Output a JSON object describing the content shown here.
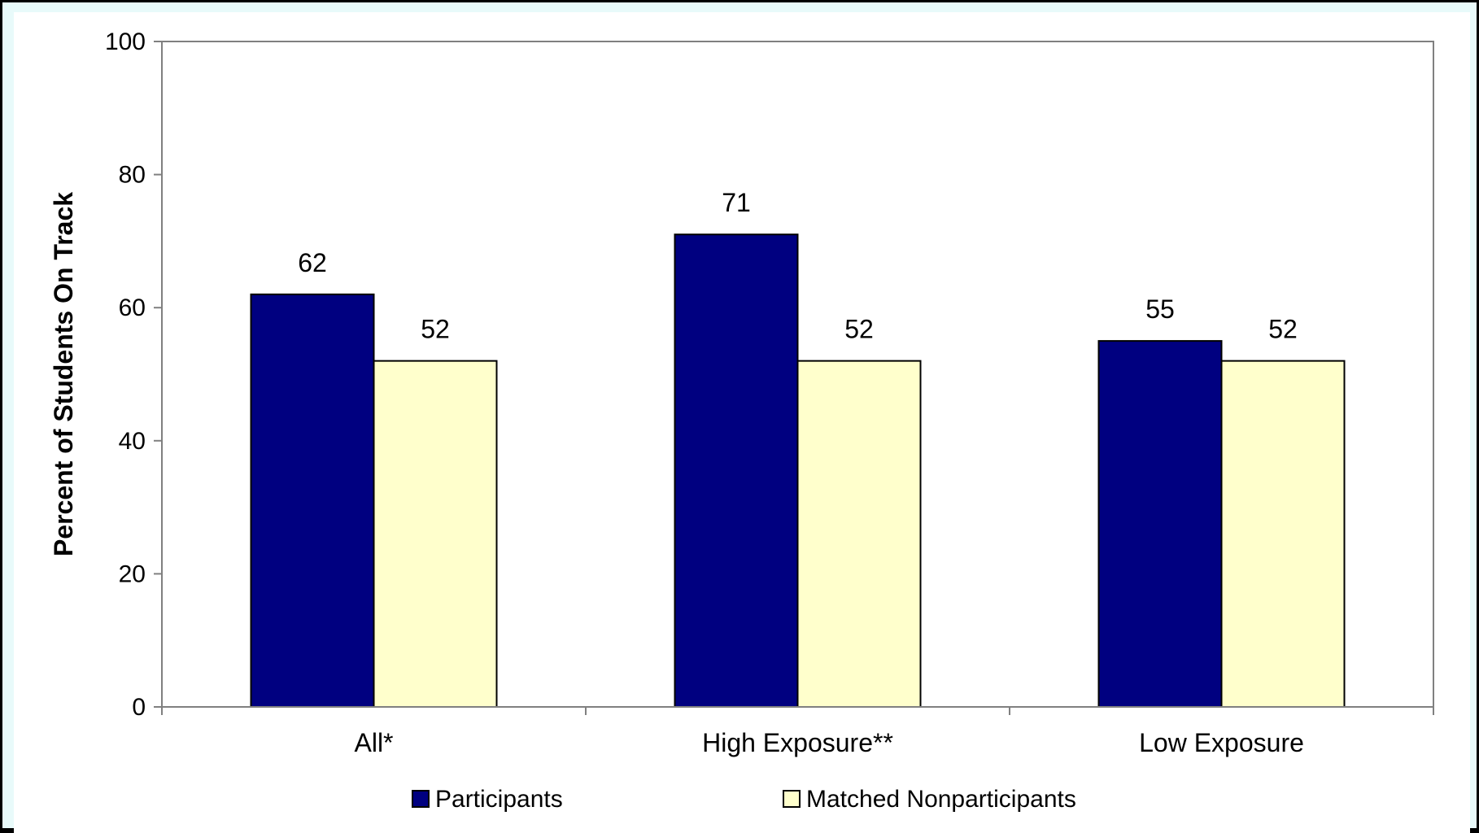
{
  "chart_data": {
    "type": "bar",
    "categories": [
      "All*",
      "High Exposure**",
      "Low  Exposure"
    ],
    "series": [
      {
        "name": "Participants",
        "values": [
          62,
          71,
          55
        ],
        "color": "#000080"
      },
      {
        "name": "Matched Nonparticipants",
        "values": [
          52,
          52,
          52
        ],
        "color": "#ffffcc"
      }
    ],
    "ylabel": "Percent of Students On Track",
    "ylim": [
      0,
      100
    ],
    "yticks": [
      0,
      20,
      40,
      60,
      80,
      100
    ],
    "legend_position": "bottom",
    "grid": false,
    "colors": {
      "frame_background": "#e8fafa",
      "frame_border": "#000000",
      "axis": "#808080",
      "bar_outline": "#000000"
    }
  }
}
